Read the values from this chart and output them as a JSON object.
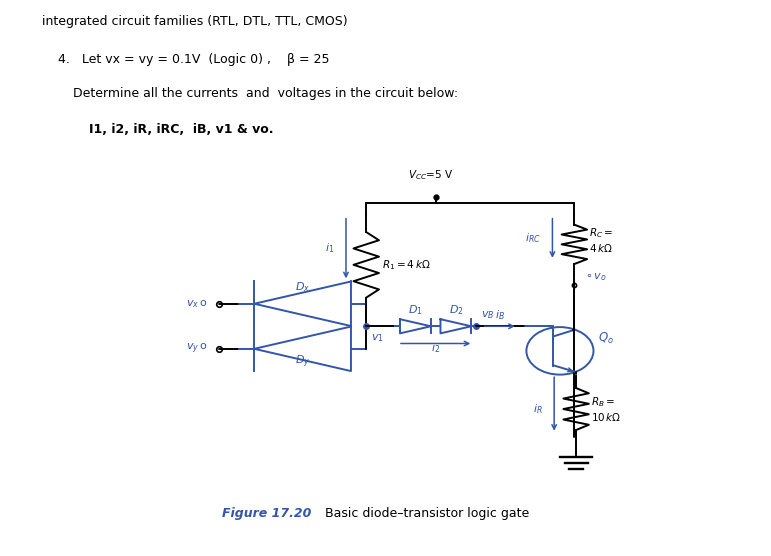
{
  "title_line1": "integrated circuit families (RTL, DTL, TTL, CMOS)",
  "title_line2": "4.   Let vx = vy = 0.1V  (Logic 0) ,    β = 25",
  "title_line3": "Determine all the currents  and  voltages in the circuit below:",
  "title_line4": "I1, i2, iR, iRC,  iB, v1 & vo.",
  "panel_bg": "#d4d0c8",
  "blue": "#3355aa",
  "fig_caption_bold": "Figure 17.20",
  "fig_caption_normal": "  Basic diode–transistor logic gate"
}
